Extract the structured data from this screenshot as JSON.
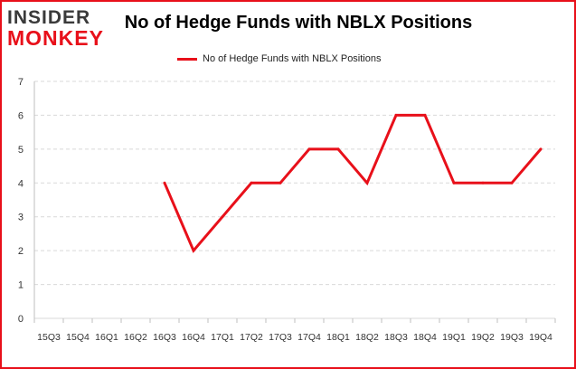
{
  "brand": {
    "logo_line1": "INSIDER",
    "logo_line2": "MONKEY",
    "logo_color_top": "#3a3a3a",
    "logo_color_bottom": "#e8101a"
  },
  "chart_data": {
    "type": "line",
    "title": "No of Hedge Funds with NBLX Positions",
    "xlabel": "",
    "ylabel": "",
    "categories": [
      "15Q3",
      "15Q4",
      "16Q1",
      "16Q2",
      "16Q3",
      "16Q4",
      "17Q1",
      "17Q2",
      "17Q3",
      "17Q4",
      "18Q1",
      "18Q2",
      "18Q3",
      "18Q4",
      "19Q1",
      "19Q2",
      "19Q3",
      "19Q4"
    ],
    "series": [
      {
        "name": "No of Hedge Funds with NBLX Positions",
        "color": "#e8101a",
        "values": [
          null,
          null,
          null,
          null,
          4,
          2,
          3,
          4,
          4,
          5,
          5,
          4,
          6,
          6,
          4,
          4,
          4,
          5
        ]
      }
    ],
    "ylim": [
      0,
      7
    ],
    "yticks": [
      0,
      1,
      2,
      3,
      4,
      5,
      6,
      7
    ],
    "grid": true,
    "legend_position": "top-center",
    "border_color": "#e8101a"
  }
}
